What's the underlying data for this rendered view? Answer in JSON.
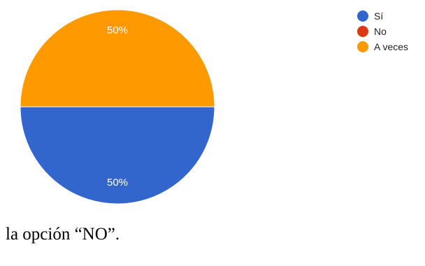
{
  "chart_data": {
    "type": "pie",
    "categories": [
      "Sí",
      "No",
      "A veces"
    ],
    "values": [
      50,
      0,
      50
    ],
    "data_labels": [
      "50%",
      "",
      "50%"
    ],
    "colors": [
      "#3366CC",
      "#DC3912",
      "#FF9900"
    ],
    "legend_position": "right"
  },
  "legend": [
    {
      "label": "Sí",
      "color": "#3366CC"
    },
    {
      "label": "No",
      "color": "#DC3912"
    },
    {
      "label": "A veces",
      "color": "#FF9900"
    }
  ],
  "caption": "la opción “NO”."
}
